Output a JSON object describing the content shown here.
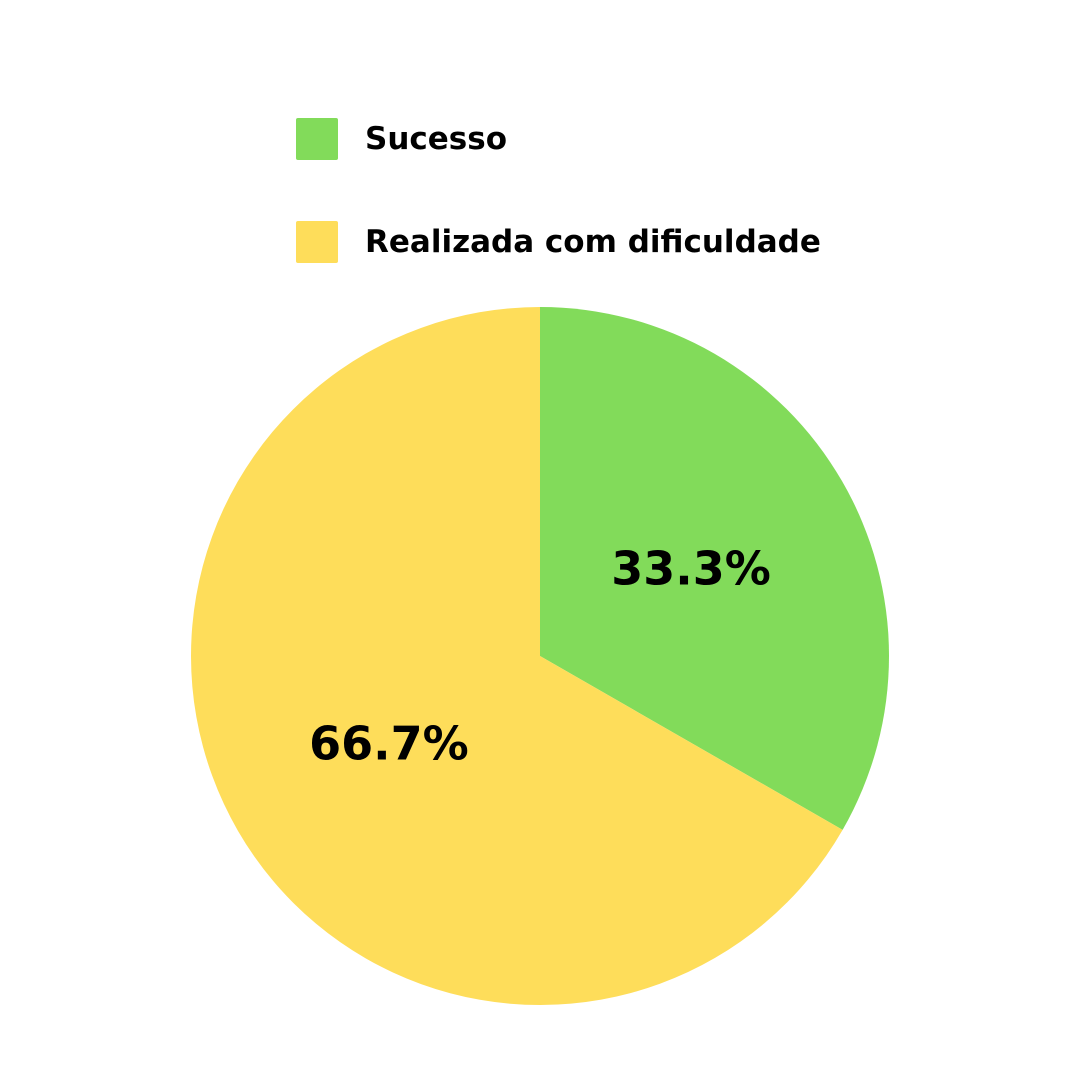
{
  "chart_data": {
    "type": "pie",
    "title": "",
    "start_angle": "12 o'clock, clockwise",
    "legend_position": "top",
    "slices": [
      {
        "label": "Sucesso",
        "value": 33.3,
        "display": "33.3%",
        "color": "#82DB5A"
      },
      {
        "label": "Realizada com dificuldade",
        "value": 66.7,
        "display": "66.7%",
        "color": "#FEDD5A"
      }
    ]
  }
}
